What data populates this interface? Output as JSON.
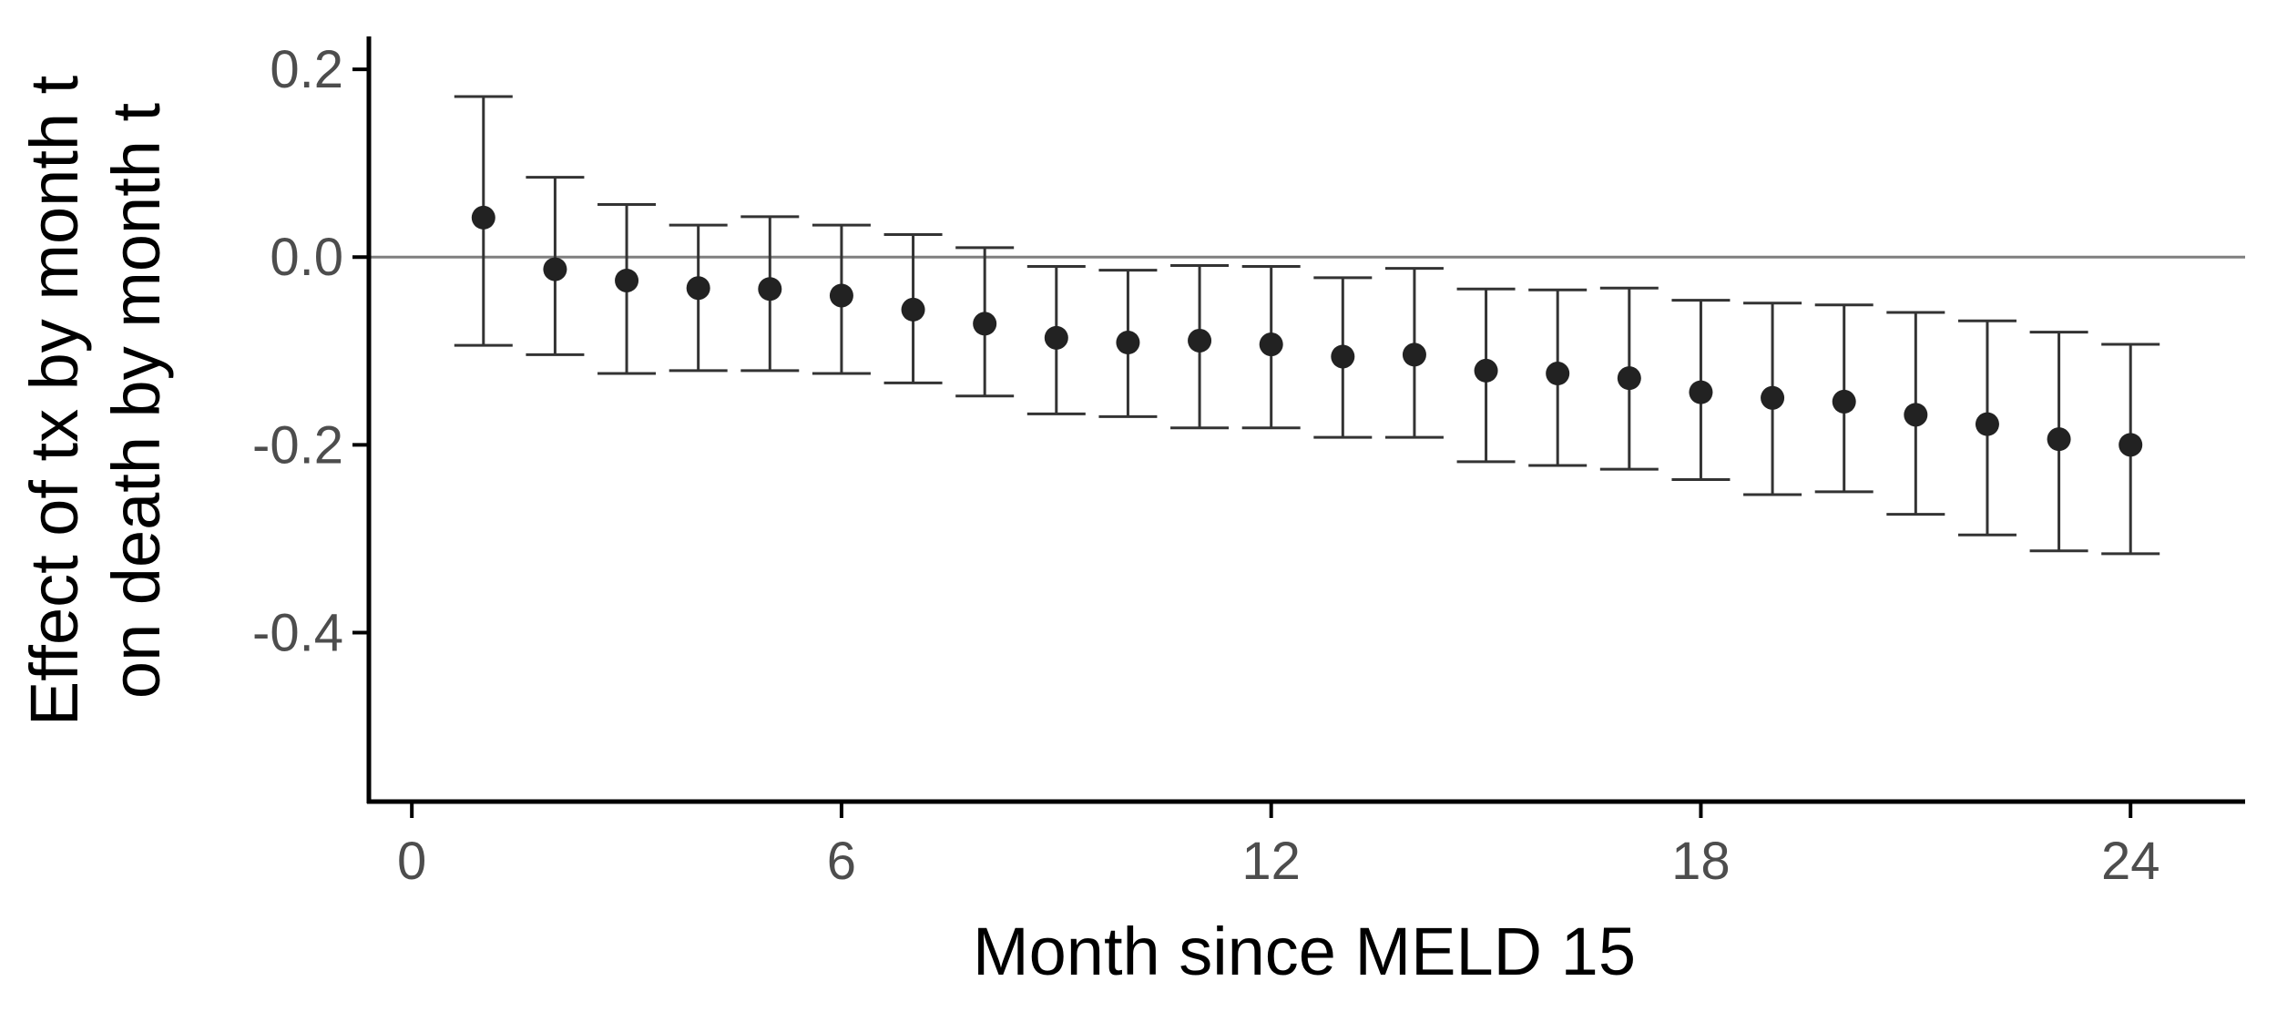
{
  "chart_data": {
    "type": "scatter",
    "subtype": "point-with-error-bars",
    "title": "",
    "xlabel": "Month since MELD 15",
    "ylabel_lines": [
      "Effect of tx by month t",
      "on death by month t"
    ],
    "xlim": [
      -0.6,
      25.6
    ],
    "ylim": [
      -0.58,
      0.235
    ],
    "x_ticks": [
      0,
      6,
      12,
      18,
      24
    ],
    "x_tick_labels": [
      "0",
      "6",
      "12",
      "18",
      "24"
    ],
    "y_ticks": [
      0.2,
      0.0,
      -0.2,
      -0.4
    ],
    "y_tick_labels": [
      "0.2",
      "0.0",
      "-0.2",
      "-0.4"
    ],
    "reference_line_y": 0,
    "grid": false,
    "legend": "none",
    "colors": {
      "points": "#222222",
      "error_bars": "#333333",
      "reference_line": "#7f7f7f",
      "axis": "#000000"
    },
    "series": [
      {
        "x": [
          1,
          2,
          3,
          4,
          5,
          6,
          7,
          8,
          9,
          10,
          11,
          12,
          13,
          14,
          15,
          16,
          17,
          18,
          19,
          20,
          21,
          22,
          23,
          24
        ],
        "estimate": [
          0.042,
          -0.013,
          -0.025,
          -0.033,
          -0.034,
          -0.041,
          -0.056,
          -0.071,
          -0.086,
          -0.091,
          -0.089,
          -0.093,
          -0.106,
          -0.104,
          -0.121,
          -0.124,
          -0.129,
          -0.144,
          -0.15,
          -0.154,
          -0.168,
          -0.178,
          -0.194,
          -0.2
        ],
        "lower": [
          -0.094,
          -0.104,
          -0.124,
          -0.121,
          -0.121,
          -0.124,
          -0.134,
          -0.148,
          -0.167,
          -0.17,
          -0.182,
          -0.182,
          -0.192,
          -0.192,
          -0.218,
          -0.222,
          -0.226,
          -0.237,
          -0.253,
          -0.25,
          -0.274,
          -0.296,
          -0.313,
          -0.316
        ],
        "upper": [
          0.171,
          0.085,
          0.056,
          0.034,
          0.043,
          0.034,
          0.024,
          0.01,
          -0.01,
          -0.014,
          -0.009,
          -0.01,
          -0.022,
          -0.012,
          -0.034,
          -0.035,
          -0.033,
          -0.046,
          -0.049,
          -0.051,
          -0.059,
          -0.068,
          -0.08,
          -0.093
        ]
      }
    ]
  }
}
